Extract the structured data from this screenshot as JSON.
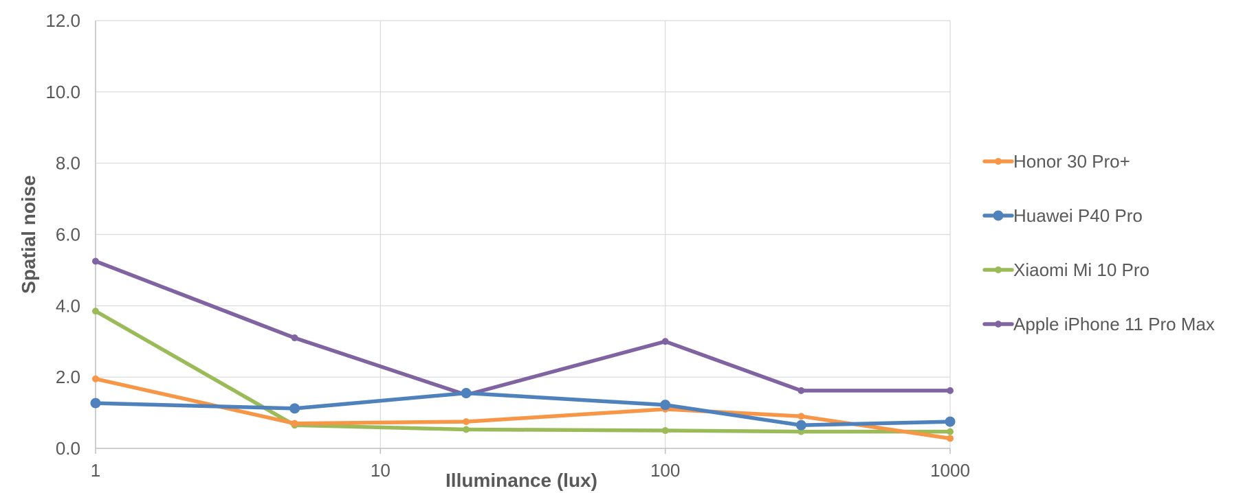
{
  "chart_data": {
    "type": "line",
    "xscale": "log",
    "xlabel": "Illuminance (lux)",
    "ylabel": "Spatial noise",
    "xlim": [
      1,
      1000
    ],
    "ylim": [
      0,
      12
    ],
    "x_ticks": [
      1,
      10,
      100,
      1000
    ],
    "x_tick_labels": [
      "1",
      "10",
      "100",
      "1000"
    ],
    "y_ticks": [
      0,
      2,
      4,
      6,
      8,
      10,
      12
    ],
    "y_tick_labels": [
      "0.0",
      "2.0",
      "4.0",
      "6.0",
      "8.0",
      "10.0",
      "12.0"
    ],
    "grid": true,
    "legend_position": "right",
    "x": [
      1,
      5,
      20,
      100,
      300,
      1000
    ],
    "series": [
      {
        "name": "Honor 30 Pro+",
        "color": "#f79646",
        "values": [
          1.95,
          0.7,
          0.75,
          1.1,
          0.9,
          0.28
        ],
        "marker_size": "small"
      },
      {
        "name": "Huawei P40 Pro",
        "color": "#4f81bd",
        "values": [
          1.27,
          1.12,
          1.55,
          1.22,
          0.65,
          0.75
        ],
        "marker_size": "large"
      },
      {
        "name": "Xiaomi Mi 10 Pro",
        "color": "#9bbb59",
        "values": [
          3.85,
          0.65,
          0.53,
          0.5,
          0.47,
          0.47
        ],
        "marker_size": "small"
      },
      {
        "name": "Apple iPhone 11 Pro Max",
        "color": "#8064a2",
        "values": [
          5.25,
          3.1,
          1.5,
          3.0,
          1.62,
          1.62
        ],
        "marker_size": "small"
      }
    ]
  }
}
